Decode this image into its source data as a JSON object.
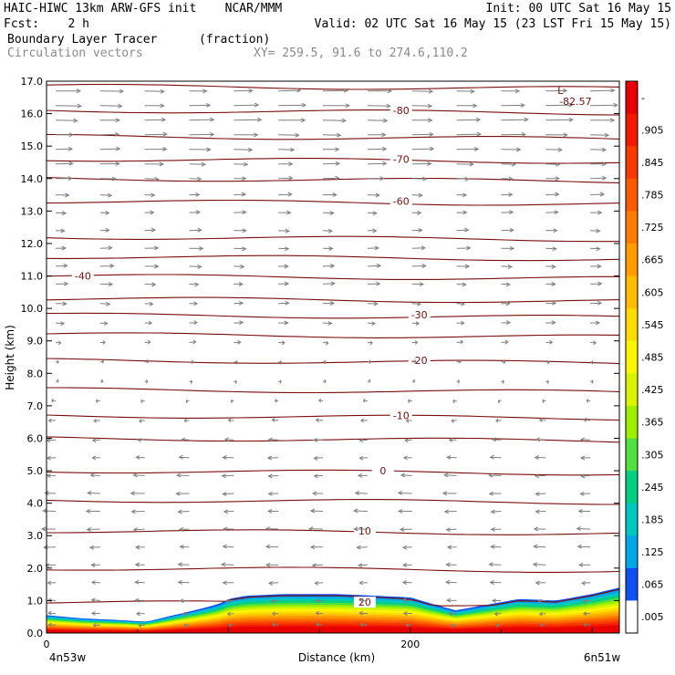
{
  "header": {
    "line1_left": "HAIC-HIWC 13km ARW-GFS init    NCAR/MMM",
    "line1_right": "Init: 00 UTC Sat 16 May 15",
    "line2_left": "Fcst:    2 h",
    "line2_right": "Valid: 02 UTC Sat 16 May 15 (23 LST Fri 15 May 15)",
    "line3_left": "Boundary Layer Tracer",
    "line3_units": "(fraction)",
    "line4_left": "Circulation vectors",
    "line4_xy": "XY= 259.5, 91.6 to 274.6,110.2"
  },
  "chart_data": {
    "type": "cross-section",
    "xlabel": "Distance (km)",
    "ylabel": "Height (km)",
    "xlim": [
      0,
      315
    ],
    "ylim": [
      0,
      17
    ],
    "x_ticks": [
      {
        "value": 0,
        "label": "0"
      },
      {
        "value": 200,
        "label": "200"
      }
    ],
    "x_end_labels": {
      "left": "4n53w",
      "right": "6n51w"
    },
    "y_ticks": [
      "0.0",
      "1.0",
      "2.0",
      "3.0",
      "4.0",
      "5.0",
      "6.0",
      "7.0",
      "8.0",
      "9.0",
      "10.0",
      "11.0",
      "12.0",
      "13.0",
      "14.0",
      "15.0",
      "16.0",
      "17.0"
    ],
    "colorbar": {
      "labels": [
        "-",
        ".905",
        ".845",
        ".785",
        ".725",
        ".665",
        ".605",
        ".545",
        ".485",
        ".425",
        ".365",
        ".305",
        ".245",
        ".185",
        ".125",
        ".065",
        ".005"
      ],
      "colors": [
        "#e80000",
        "#f21a00",
        "#f83a00",
        "#fb5a00",
        "#fd7c00",
        "#fe9c00",
        "#ffbd00",
        "#ffdc00",
        "#fdf500",
        "#d9f400",
        "#9ef000",
        "#50e040",
        "#00d080",
        "#00c8c0",
        "#00a8e8",
        "#1050f0",
        "#ffffff"
      ]
    },
    "temperature_contours": [
      {
        "label": "-80",
        "height": 16.1,
        "x": 195
      },
      {
        "label": "-70",
        "height": 14.6,
        "x": 195
      },
      {
        "label": "-60",
        "height": 13.3,
        "x": 195
      },
      {
        "label": "-40",
        "height": 11.0,
        "x": 20
      },
      {
        "label": "-30",
        "height": 9.8,
        "x": 205
      },
      {
        "label": "-20",
        "height": 8.4,
        "x": 205
      },
      {
        "label": "-10",
        "height": 6.7,
        "x": 195
      },
      {
        "label": "0",
        "height": 5.0,
        "x": 185
      },
      {
        "label": "10",
        "height": 3.15,
        "x": 175
      },
      {
        "label": "20",
        "height": 0.95,
        "x": 175
      }
    ],
    "extra_contour_heights": [
      16.85,
      15.3,
      14.0,
      12.2,
      11.6,
      10.3,
      9.2,
      7.5,
      6.0,
      4.1,
      2.0
    ],
    "minimum_label": {
      "mark": "L",
      "value": "-82.57",
      "x": 285,
      "height": 16.6
    },
    "tracer_top_profile": {
      "x": [
        0,
        20,
        40,
        55,
        70,
        85,
        95,
        100,
        110,
        130,
        160,
        200,
        215,
        225,
        240,
        260,
        280,
        300,
        315
      ],
      "height": [
        0.55,
        0.45,
        0.4,
        0.35,
        0.55,
        0.75,
        0.9,
        1.05,
        1.15,
        1.2,
        1.2,
        1.1,
        0.85,
        0.7,
        0.85,
        1.05,
        1.0,
        1.2,
        1.4
      ]
    },
    "wind_rows": [
      {
        "height": 16.7,
        "dir": 1,
        "speed": 0.9
      },
      {
        "height": 16.25,
        "dir": 1,
        "speed": 1.0
      },
      {
        "height": 15.8,
        "dir": 1,
        "speed": 1.0
      },
      {
        "height": 15.35,
        "dir": 1,
        "speed": 0.9
      },
      {
        "height": 14.9,
        "dir": 1,
        "speed": 0.8
      },
      {
        "height": 14.45,
        "dir": 1,
        "speed": 0.7
      },
      {
        "height": 14.0,
        "dir": 1,
        "speed": 0.6
      },
      {
        "height": 13.5,
        "dir": 1,
        "speed": 0.5
      },
      {
        "height": 12.95,
        "dir": 1,
        "speed": 0.45
      },
      {
        "height": 12.4,
        "dir": 1,
        "speed": 0.45
      },
      {
        "height": 11.85,
        "dir": 1,
        "speed": 0.5
      },
      {
        "height": 11.3,
        "dir": 1,
        "speed": 0.5
      },
      {
        "height": 10.75,
        "dir": 1,
        "speed": 0.45
      },
      {
        "height": 10.15,
        "dir": 1,
        "speed": 0.4
      },
      {
        "height": 9.55,
        "dir": 1,
        "speed": 0.35
      },
      {
        "height": 8.95,
        "dir": 1,
        "speed": 0.25
      },
      {
        "height": 8.35,
        "dir": 1,
        "speed": 0.15
      },
      {
        "height": 7.75,
        "dir": 1,
        "speed": 0.1
      },
      {
        "height": 7.15,
        "dir": -1,
        "speed": 0.15
      },
      {
        "height": 6.55,
        "dir": -1,
        "speed": 0.25
      },
      {
        "height": 5.95,
        "dir": -1,
        "speed": 0.35
      },
      {
        "height": 5.4,
        "dir": -1,
        "speed": 0.4
      },
      {
        "height": 4.85,
        "dir": -1,
        "speed": 0.45
      },
      {
        "height": 4.3,
        "dir": -1,
        "speed": 0.5
      },
      {
        "height": 3.75,
        "dir": -1,
        "speed": 0.5
      },
      {
        "height": 3.2,
        "dir": -1,
        "speed": 0.5
      },
      {
        "height": 2.65,
        "dir": -1,
        "speed": 0.45
      },
      {
        "height": 2.1,
        "dir": -1,
        "speed": 0.45
      },
      {
        "height": 1.55,
        "dir": -1,
        "speed": 0.4
      },
      {
        "height": 1.0,
        "dir": -1,
        "speed": 0.35
      },
      {
        "height": 0.6,
        "dir": -1,
        "speed": 0.3
      },
      {
        "height": 0.25,
        "dir": -1,
        "speed": 0.25
      }
    ],
    "colors": {
      "contour": "#7a0d0d",
      "vector": "#7f7f7f"
    }
  }
}
